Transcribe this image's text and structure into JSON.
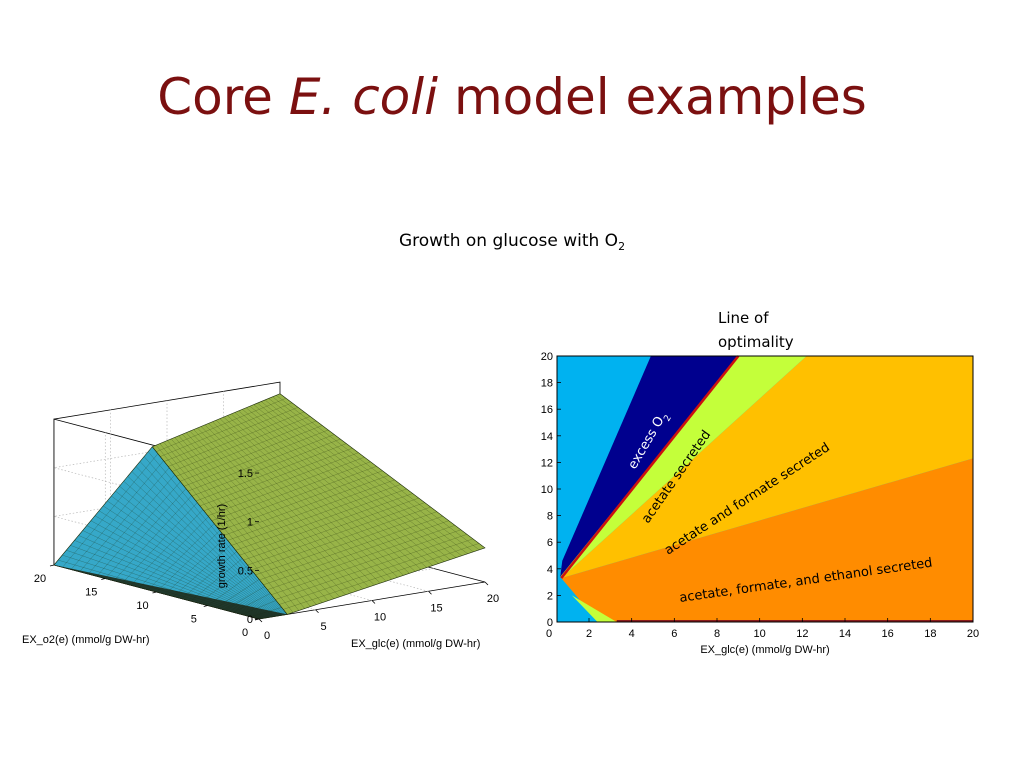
{
  "slide": {
    "title_pre": "Core ",
    "title_italic": "E. coli",
    "title_post": " model examples",
    "subtitle": "Growth on glucose with O",
    "subtitle_sub": "2",
    "note_line1": "Line of",
    "note_line2": "optimality"
  },
  "chart_data": [
    {
      "type": "surface",
      "zlabel": "growth rate (1/hr)",
      "xlabel": "EX_glc(e) (mmol/g DW-hr)",
      "ylabel": "EX_o2(e) (mmol/g DW-hr)",
      "x_ticks": [
        "0",
        "5",
        "10",
        "15",
        "20"
      ],
      "y_ticks": [
        "0",
        "5",
        "10",
        "15",
        "20"
      ],
      "z_ticks": [
        "0",
        "0.5",
        "1",
        "1.5"
      ],
      "xlim": [
        0,
        20
      ],
      "ylim": [
        0,
        20
      ],
      "zlim": [
        0,
        1.5
      ],
      "surface_corners": [
        {
          "glc": 0,
          "o2": 0,
          "growth": 0
        },
        {
          "glc": 0,
          "o2": 20,
          "growth": 0
        },
        {
          "glc": 8.7,
          "o2": 20,
          "growth": 1.05
        },
        {
          "glc": 20,
          "o2": 20,
          "growth": 1.38
        },
        {
          "glc": 20,
          "o2": 0,
          "growth": 0.35
        },
        {
          "glc": 2.5,
          "o2": 0,
          "growth": 0
        }
      ],
      "colors": {
        "steep_face": "#36a8c8",
        "plateau": "#98b448",
        "mesh": "#1a2a08"
      },
      "grid": true
    },
    {
      "type": "heatmap",
      "xlabel": "EX_glc(e) (mmol/g DW-hr)",
      "x_ticks": [
        "0",
        "2",
        "4",
        "6",
        "8",
        "10",
        "12",
        "14",
        "16",
        "18",
        "20"
      ],
      "y_ticks": [
        "0",
        "2",
        "4",
        "6",
        "8",
        "10",
        "12",
        "14",
        "16",
        "18",
        "20"
      ],
      "xlim": [
        0.5,
        20
      ],
      "ylim": [
        0,
        20
      ],
      "regions": [
        {
          "label": "",
          "color": "#00b2f0"
        },
        {
          "label": "excess O",
          "label_sub": "2",
          "color": "#00008e",
          "boundary_x_at_y20": 4.9
        },
        {
          "label": "acetate secreted",
          "color": "#c4ff3a",
          "boundary_x_at_y20": 9.0
        },
        {
          "label": "acetate and formate secreted",
          "color": "#ffc000",
          "boundary_x_at_y20": 12.2
        },
        {
          "label": "acetate, formate, and ethanol secreted",
          "color": "#ff8c00",
          "boundary_y_at_x20": 12.3
        }
      ],
      "line_of_optimality": {
        "from": [
          0.7,
          3.3
        ],
        "to": [
          9.0,
          20
        ],
        "color": "#cc1010"
      }
    }
  ]
}
